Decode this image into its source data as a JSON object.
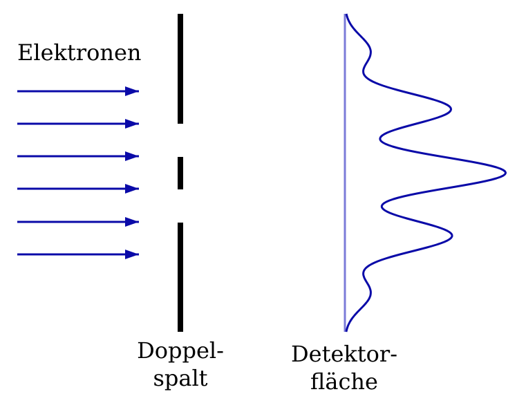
{
  "labels": {
    "particles": "Elektronen",
    "slit_line1": "Doppel-",
    "slit_line2": "spalt",
    "detector_line1": "Detektor-",
    "detector_line2": "fläche"
  },
  "colors": {
    "arrow": "#0a0aa8",
    "barrier": "#000000",
    "detector_axis": "#7b7bd8",
    "pattern": "#0a0aa8"
  },
  "beam": {
    "arrow_count": 6
  },
  "barrier": {
    "slit_count": 2
  },
  "interference_pattern": {
    "maxima_count": 5,
    "relative_peak_heights": [
      0.24,
      0.99,
      1.5,
      1.0,
      0.24
    ]
  }
}
